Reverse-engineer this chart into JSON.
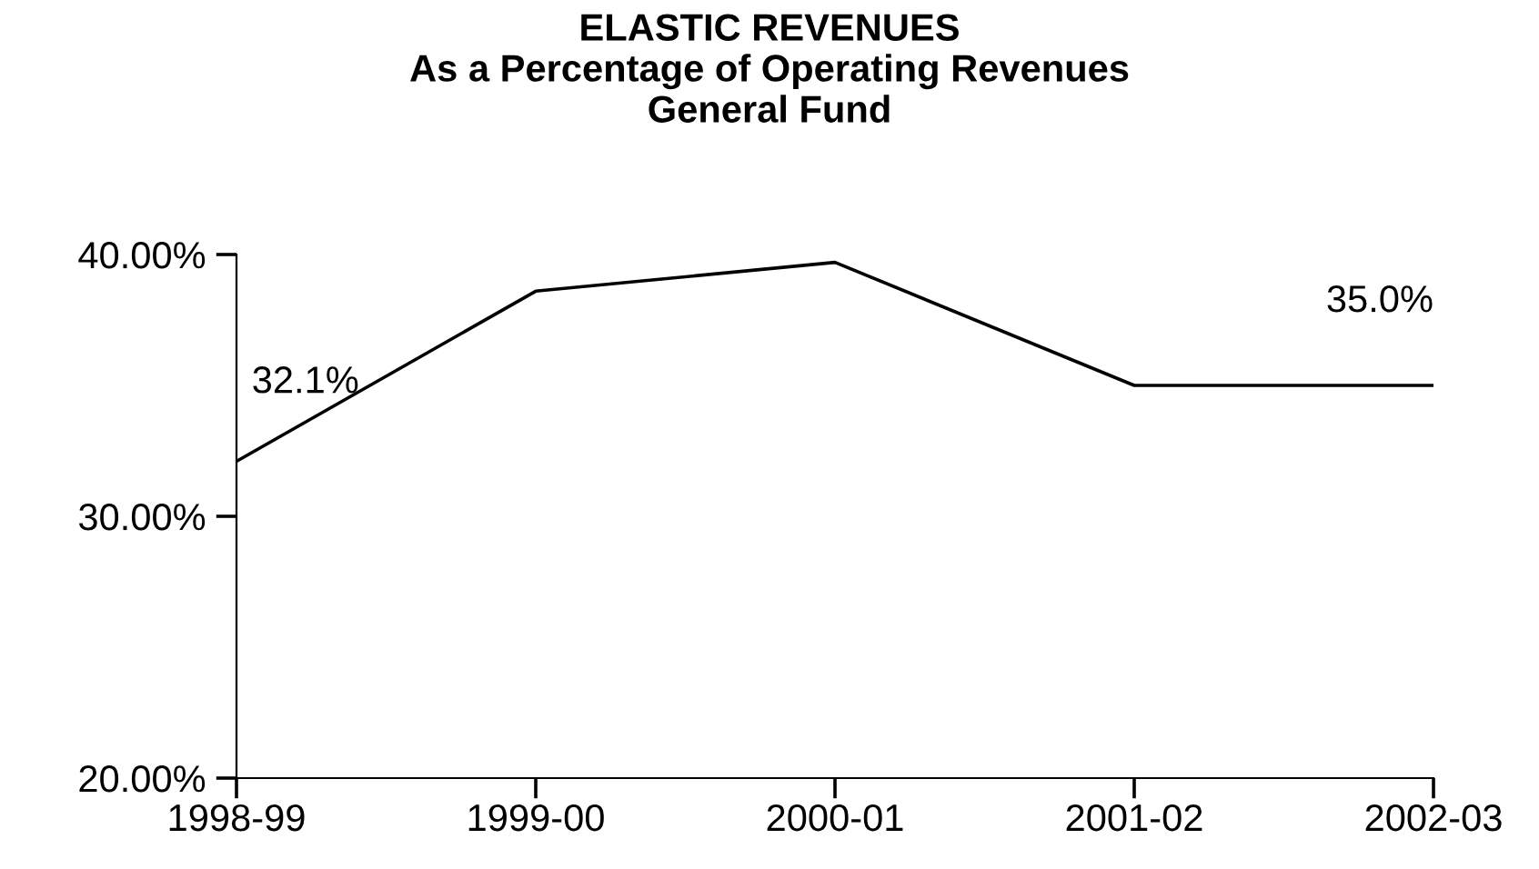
{
  "chart_data": {
    "type": "line",
    "title": "ELASTIC REVENUES\nAs a Percentage of Operating Revenues\nGeneral Fund",
    "categories": [
      "1998-99",
      "1999-00",
      "2000-01",
      "2001-02",
      "2002-03"
    ],
    "values": [
      32.1,
      38.6,
      39.7,
      35.0,
      35.0
    ],
    "value_labels": [
      "32.1%",
      null,
      null,
      null,
      "35.0%"
    ],
    "color": "#000000",
    "marker": "none",
    "line_style": "solid",
    "grid": false,
    "legend": false,
    "ylim": [
      20,
      40
    ],
    "yticks": [
      {
        "value": 20,
        "label": "20.00%"
      },
      {
        "value": 30,
        "label": "30.00%"
      },
      {
        "value": 40,
        "label": "40.00%"
      }
    ]
  }
}
